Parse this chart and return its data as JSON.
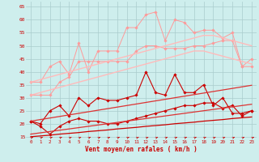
{
  "background_color": "#ceeeed",
  "grid_color": "#aacccc",
  "xlabel": "Vent moyen/en rafales ( km/h )",
  "xlabel_color": "#cc0000",
  "tick_color": "#cc0000",
  "x_ticks": [
    0,
    1,
    2,
    3,
    4,
    5,
    6,
    7,
    8,
    9,
    10,
    11,
    12,
    13,
    14,
    15,
    16,
    17,
    18,
    19,
    20,
    21,
    22,
    23
  ],
  "ylim": [
    14,
    67
  ],
  "yticks": [
    15,
    20,
    25,
    30,
    35,
    40,
    45,
    50,
    55,
    60,
    65
  ],
  "series": [
    {
      "color": "#ff9999",
      "linewidth": 0.7,
      "marker": "D",
      "markersize": 1.8,
      "data": [
        36,
        36,
        42,
        44,
        39,
        51,
        40,
        48,
        48,
        48,
        57,
        57,
        62,
        63,
        52,
        60,
        59,
        55,
        56,
        56,
        53,
        55,
        42,
        45
      ]
    },
    {
      "color": "#ff9999",
      "linewidth": 0.7,
      "marker": "D",
      "markersize": 1.8,
      "data": [
        31,
        31,
        31,
        36,
        38,
        44,
        44,
        44,
        44,
        44,
        44,
        48,
        50,
        50,
        49,
        49,
        49,
        50,
        50,
        51,
        52,
        52,
        42,
        42
      ]
    },
    {
      "color": "#ffbbbb",
      "linewidth": 1.0,
      "marker": null,
      "markersize": 0,
      "data": [
        36,
        37,
        38,
        39,
        40,
        41,
        42,
        43,
        44,
        45,
        46,
        47,
        48,
        49,
        50,
        51,
        52,
        53,
        54,
        54,
        53,
        52,
        51,
        50
      ]
    },
    {
      "color": "#ffbbbb",
      "linewidth": 1.0,
      "marker": null,
      "markersize": 0,
      "data": [
        31,
        32,
        33,
        34,
        35,
        36,
        37,
        38,
        39,
        40,
        41,
        42,
        43,
        44,
        45,
        46,
        47,
        48,
        48,
        47,
        46,
        45,
        44,
        43
      ]
    },
    {
      "color": "#cc0000",
      "linewidth": 0.8,
      "marker": "D",
      "markersize": 1.8,
      "data": [
        21,
        20,
        25,
        27,
        23,
        30,
        27,
        30,
        29,
        29,
        30,
        31,
        40,
        32,
        31,
        39,
        32,
        32,
        35,
        27,
        30,
        24,
        24,
        25
      ]
    },
    {
      "color": "#cc0000",
      "linewidth": 0.8,
      "marker": "D",
      "markersize": 1.8,
      "data": [
        21,
        19,
        16,
        19,
        21,
        22,
        21,
        21,
        20,
        20,
        21,
        22,
        23,
        24,
        25,
        26,
        27,
        27,
        28,
        28,
        26,
        27,
        23,
        25
      ]
    },
    {
      "color": "#dd3333",
      "linewidth": 0.9,
      "marker": null,
      "markersize": 0,
      "data": [
        21,
        21.6,
        22.2,
        22.8,
        23.4,
        24,
        24.6,
        25.2,
        25.8,
        26.4,
        27,
        27.6,
        28.2,
        28.8,
        29.4,
        30,
        30.6,
        31.2,
        31.8,
        32.4,
        33,
        33.6,
        34.2,
        34.8
      ]
    },
    {
      "color": "#dd3333",
      "linewidth": 0.9,
      "marker": null,
      "markersize": 0,
      "data": [
        16,
        16.5,
        17,
        17.5,
        18,
        18.5,
        19,
        19.5,
        20,
        20.5,
        21,
        21.5,
        22,
        22.5,
        23,
        23.5,
        24,
        24.5,
        25,
        25.5,
        26,
        26.5,
        27,
        27.5
      ]
    },
    {
      "color": "#cc0000",
      "linewidth": 0.9,
      "marker": null,
      "markersize": 0,
      "data": [
        15,
        15.3,
        15.6,
        16,
        16.3,
        16.6,
        17,
        17.3,
        17.6,
        18,
        18.3,
        18.6,
        19,
        19.3,
        19.6,
        20,
        20.3,
        20.6,
        21,
        21.3,
        21.6,
        22,
        22.3,
        22.6
      ]
    }
  ]
}
